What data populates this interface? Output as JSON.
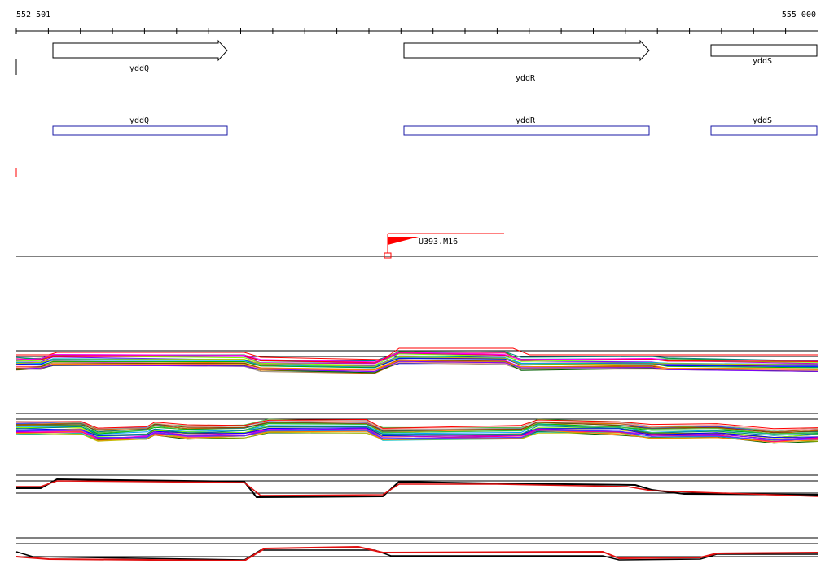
{
  "ruler": {
    "start_label": "552 501",
    "end_label": "555 000"
  },
  "genes": [
    {
      "name": "yddQ",
      "kind": "arrow"
    },
    {
      "name": "yddR",
      "kind": "arrow"
    },
    {
      "name": "yddS",
      "kind": "partial"
    }
  ],
  "annotations": [
    {
      "name": "yddQ"
    },
    {
      "name": "yddR"
    },
    {
      "name": "yddS"
    }
  ],
  "marker": {
    "label": "U393.M16"
  },
  "colors": {
    "ink": "#000000",
    "annotation": "#1a1aa6",
    "marker": "#ff0000",
    "track_red": "#e01010",
    "track_black": "#000000"
  }
}
